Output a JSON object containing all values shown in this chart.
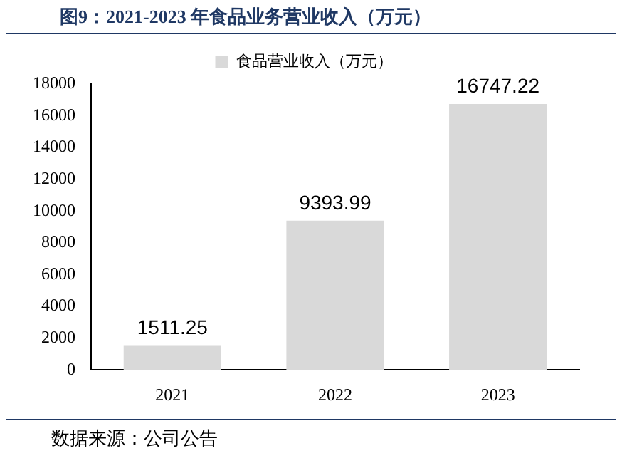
{
  "chart_data": {
    "type": "bar",
    "title": "图9：2021-2023 年食品业务营业收入（万元）",
    "categories": [
      "2021",
      "2022",
      "2023"
    ],
    "series": [
      {
        "name": "食品营业收入（万元）",
        "color": "#d9d9d9",
        "values": [
          1511.25,
          9393.99,
          16747.22
        ]
      }
    ],
    "ylim": [
      0,
      18000
    ],
    "yticks": [
      0,
      2000,
      4000,
      6000,
      8000,
      10000,
      12000,
      14000,
      16000,
      18000
    ],
    "grid": false,
    "legend": "top",
    "data_labels": true,
    "annotations": [
      "数据来源：公司公告"
    ]
  }
}
